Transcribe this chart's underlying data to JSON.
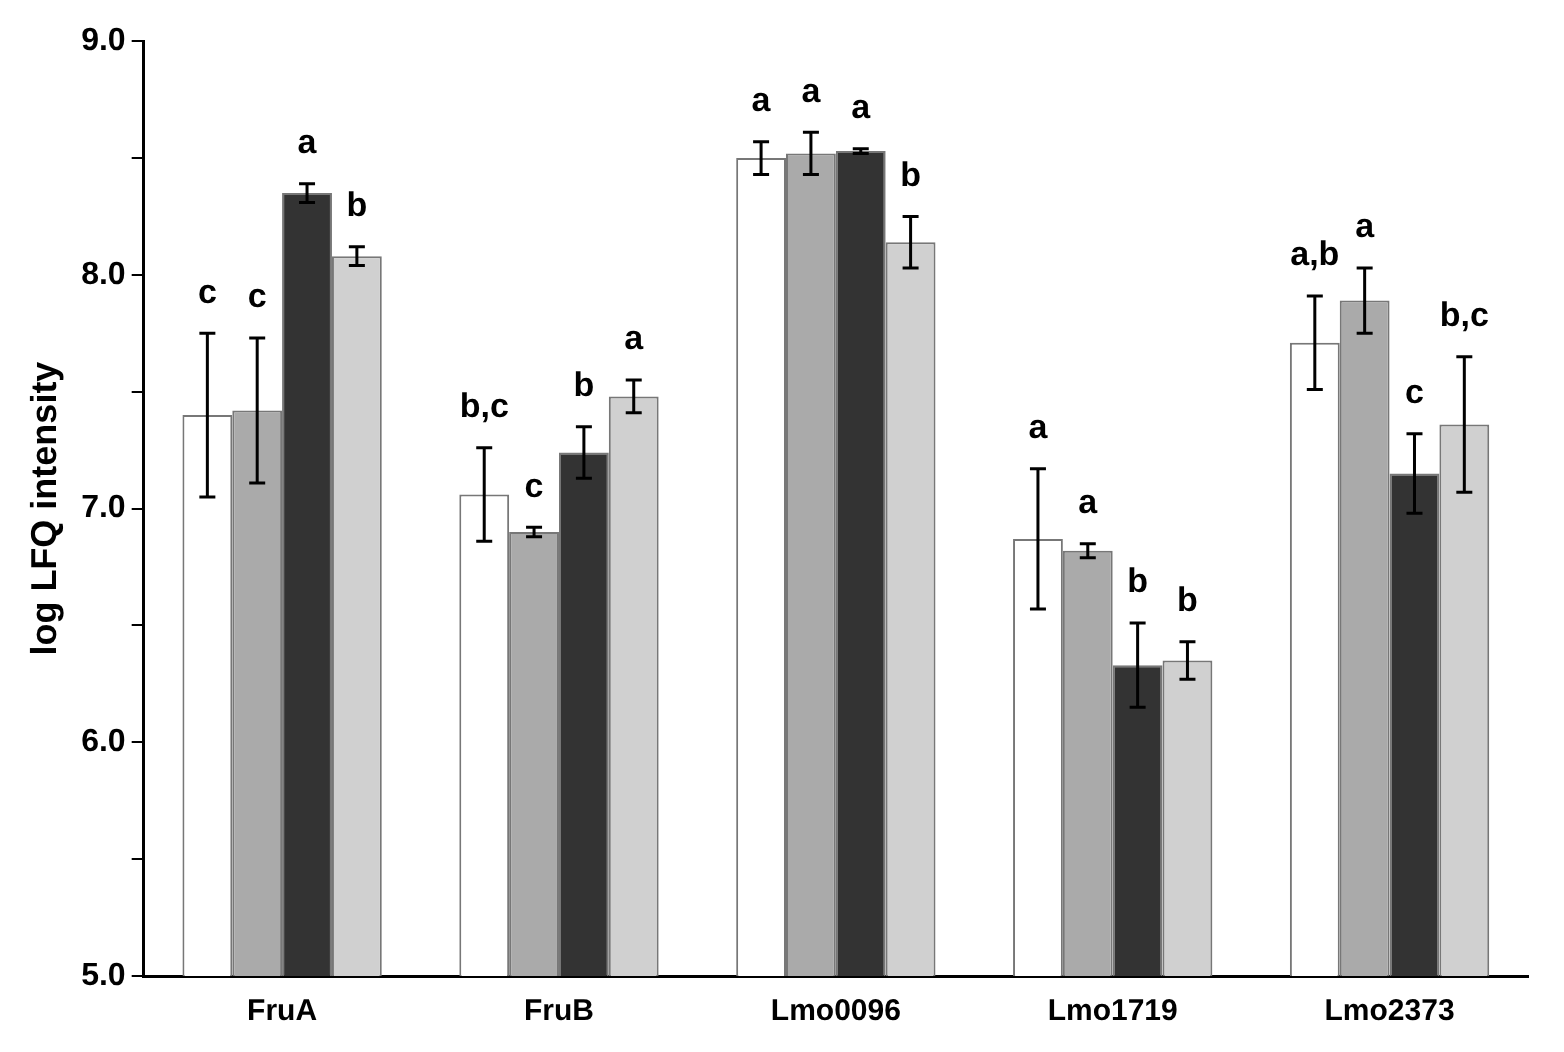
{
  "chart_data": {
    "type": "bar",
    "ylabel": "log LFQ intensity",
    "categories": [
      "FruA",
      "FruB",
      "Lmo0096",
      "Lmo1719",
      "Lmo2373"
    ],
    "series": [
      {
        "color": "#ffffff",
        "values": [
          7.4,
          7.06,
          8.5,
          6.87,
          7.71
        ],
        "errors": [
          0.35,
          0.2,
          0.07,
          0.3,
          0.2
        ]
      },
      {
        "color": "#aaaaaa",
        "values": [
          7.42,
          6.9,
          8.52,
          6.82,
          7.89
        ],
        "errors": [
          0.31,
          0.02,
          0.09,
          0.03,
          0.14
        ]
      },
      {
        "color": "#333333",
        "values": [
          8.35,
          7.24,
          8.53,
          6.33,
          7.15
        ],
        "errors": [
          0.04,
          0.11,
          0.01,
          0.18,
          0.17
        ]
      },
      {
        "color": "#d0d0d0",
        "values": [
          8.08,
          7.48,
          8.14,
          6.35,
          7.36
        ],
        "errors": [
          0.04,
          0.07,
          0.11,
          0.08,
          0.29
        ]
      }
    ],
    "ylim": [
      5,
      9
    ],
    "yticks": [
      {
        "value": 5,
        "label": "5.0"
      },
      {
        "value": 5.5,
        "label": null
      },
      {
        "value": 6,
        "label": "6.0"
      },
      {
        "value": 6.5,
        "label": null
      },
      {
        "value": 7,
        "label": "7.0"
      },
      {
        "value": 7.5,
        "label": null
      },
      {
        "value": 8,
        "label": "8.0"
      },
      {
        "value": 8.5,
        "label": null
      },
      {
        "value": 9,
        "label": "9.0"
      }
    ],
    "grid": false,
    "legend": false,
    "annotations": [
      "c",
      "c",
      "a",
      "b",
      "b,c",
      "c",
      "b",
      "a",
      "a",
      "a",
      "a",
      "b",
      "a",
      "a",
      "b",
      "b",
      "a,b",
      "a",
      "c",
      "b,c"
    ]
  }
}
